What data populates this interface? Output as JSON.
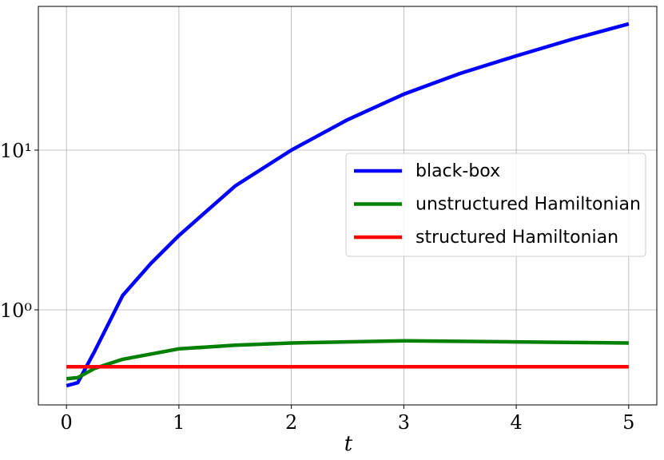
{
  "chart_data": {
    "type": "line",
    "x_label": "t",
    "xlim": [
      -0.25,
      5.25
    ],
    "xticks": [
      0,
      1,
      2,
      3,
      4,
      5
    ],
    "ylim": [
      0.254,
      79.4
    ],
    "yscale": "log",
    "yticks": [
      {
        "value": 1,
        "label": "10⁰"
      },
      {
        "value": 10,
        "label": "10¹"
      }
    ],
    "grid": true,
    "legend": "center right",
    "series": [
      {
        "name": "black-box",
        "color": "#0000ff",
        "x": [
          0,
          0.1,
          0.25,
          0.5,
          0.75,
          1,
          1.5,
          2,
          2.5,
          3,
          3.5,
          4,
          4.5,
          5
        ],
        "values": [
          0.335,
          0.35,
          0.55,
          1.23,
          1.95,
          2.92,
          5.96,
          10.0,
          15.5,
          22.4,
          30.2,
          38.9,
          49.5,
          61.7
        ]
      },
      {
        "name": "unstructured Hamiltonian",
        "color": "#008000",
        "x": [
          0,
          0.1,
          0.25,
          0.5,
          1,
          1.5,
          2,
          3,
          4,
          5
        ],
        "values": [
          0.37,
          0.376,
          0.43,
          0.49,
          0.57,
          0.6,
          0.62,
          0.64,
          0.63,
          0.62
        ]
      },
      {
        "name": "structured Hamiltonian",
        "color": "#ff0000",
        "x": [
          0,
          5
        ],
        "values": [
          0.44,
          0.44
        ]
      }
    ]
  }
}
